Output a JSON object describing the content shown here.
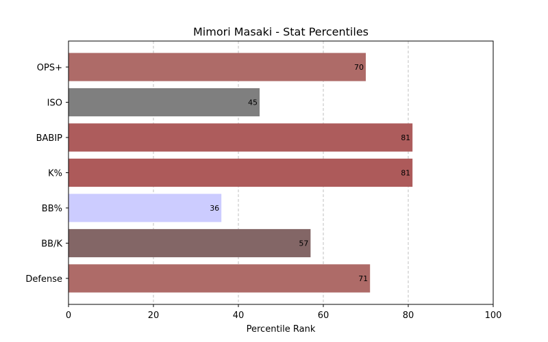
{
  "chart_data": {
    "type": "bar",
    "orientation": "horizontal",
    "title": "Mimori Masaki - Stat Percentiles",
    "xlabel": "Percentile Rank",
    "ylabel": "",
    "xlim": [
      0,
      100
    ],
    "xticks": [
      0,
      20,
      40,
      60,
      80,
      100
    ],
    "grid": "x-dashed",
    "categories": [
      "OPS+",
      "ISO",
      "BABIP",
      "K%",
      "BB%",
      "BB/K",
      "Defense"
    ],
    "values": [
      70,
      45,
      81,
      81,
      36,
      57,
      71
    ],
    "colors": [
      "#ae6b68",
      "#7f7f7f",
      "#ad5c5c",
      "#ad5a5a",
      "#ccccff",
      "#836666",
      "#ae6b68"
    ]
  }
}
